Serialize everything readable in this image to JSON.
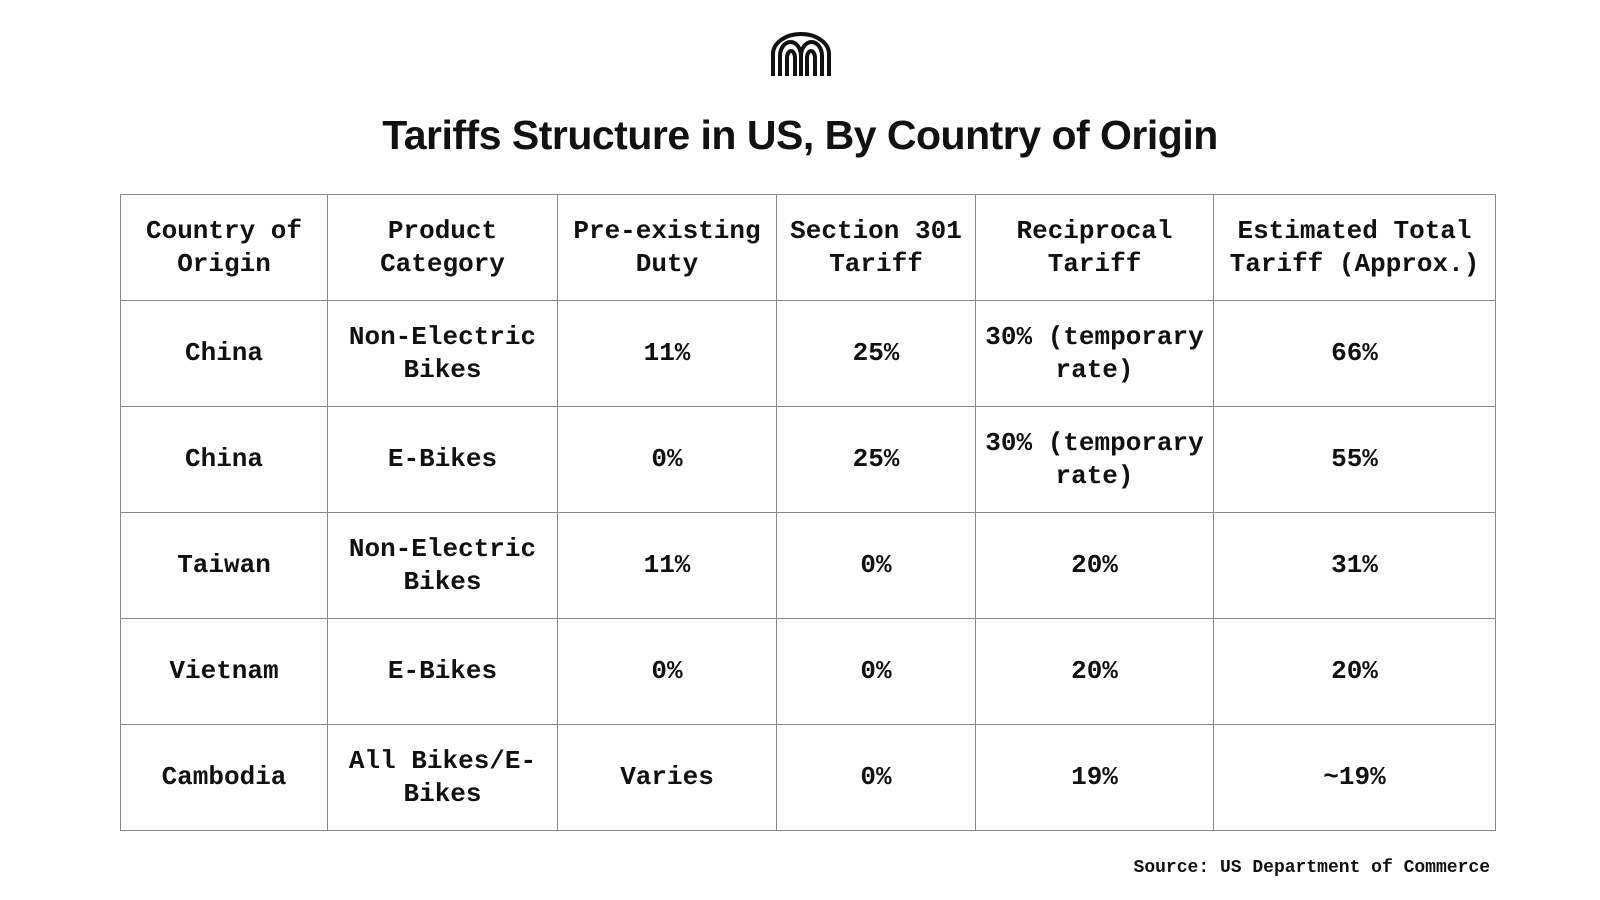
{
  "title": "Tariffs Structure in US, By Country of Origin",
  "logo": {
    "icon": "arches-logo-icon"
  },
  "table": {
    "headers": [
      "Country of Origin",
      "Product Category",
      "Pre-existing Duty",
      "Section 301 Tariff",
      "Reciprocal Tariff",
      "Estimated Total Tariff (Approx.)"
    ],
    "rows": [
      [
        "China",
        "Non-Electric Bikes",
        "11%",
        "25%",
        "30% (temporary rate)",
        "66%"
      ],
      [
        "China",
        "E-Bikes",
        "0%",
        "25%",
        "30% (temporary rate)",
        "55%"
      ],
      [
        "Taiwan",
        "Non-Electric Bikes",
        "11%",
        "0%",
        "20%",
        "31%"
      ],
      [
        "Vietnam",
        "E-Bikes",
        "0%",
        "0%",
        "20%",
        "20%"
      ],
      [
        "Cambodia",
        "All Bikes/E-Bikes",
        "Varies",
        "0%",
        "19%",
        "~19%"
      ]
    ]
  },
  "source": "Source: US Department of Commerce"
}
